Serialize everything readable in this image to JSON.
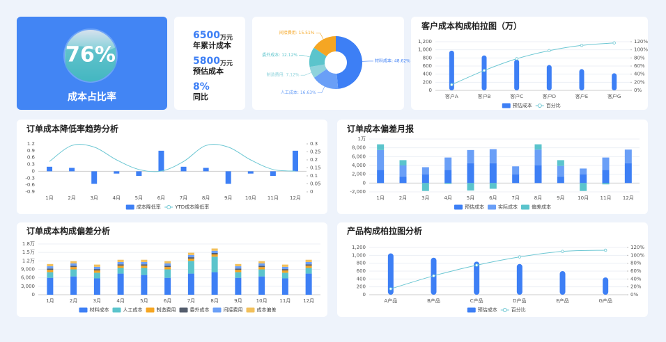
{
  "gauge": {
    "value": "76%",
    "label": "成本占比率"
  },
  "kpis": [
    {
      "value": "6500",
      "unit": "万元",
      "label": "年累计成本"
    },
    {
      "value": "5800",
      "unit": "万元",
      "label": "预估成本"
    },
    {
      "value": "8%",
      "label": "同比"
    }
  ],
  "chart_data": [
    {
      "type": "pie",
      "values": [
        48.62,
        16.63,
        7.12,
        12.12,
        15.51
      ],
      "value_labels": [
        "材料成本: 48.62%",
        "人工成本: 16.63%",
        "制造费用: 7.12%",
        "委外成本: 12.12%",
        "间接费用: 15.51%"
      ],
      "colors": [
        "#3d7ff5",
        "#6a9ff7",
        "#8fd3dc",
        "#5bc4cc",
        "#f5a623"
      ]
    },
    {
      "type": "combo",
      "title": "客户成本构成柏拉图（万）",
      "categories": [
        "客户A",
        "客户B",
        "客户C",
        "客户D",
        "客户E",
        "客户G"
      ],
      "series": [
        {
          "name": "预估成本",
          "type": "bar",
          "color": "#3d7ff5",
          "values": [
            980,
            862,
            760,
            625,
            524,
            422
          ]
        },
        {
          "name": "百分比",
          "type": "line",
          "axis": "y2",
          "markers": true,
          "color": "#6cc7d3",
          "values": [
            14,
            49,
            78,
            98,
            111,
            117
          ]
        }
      ],
      "ylim": [
        0,
        1200
      ],
      "yticks": [
        0,
        200,
        400,
        600,
        800,
        {
          "value": 1000,
          "label": "1,000"
        },
        {
          "value": 1200,
          "label": "1,200"
        }
      ],
      "y2lim": [
        0,
        120
      ],
      "y2ticks": [
        {
          "value": 0,
          "label": "0%"
        },
        {
          "value": 20,
          "label": "20%"
        },
        {
          "value": 40,
          "label": "40%"
        },
        {
          "value": 60,
          "label": "60%"
        },
        {
          "value": 80,
          "label": "80%"
        },
        {
          "value": 100,
          "label": "100%"
        },
        {
          "value": 120,
          "label": "120%"
        }
      ],
      "grid": true
    },
    {
      "type": "combo",
      "title": "订单成本降低率趋势分析",
      "categories": [
        "1月",
        "2月",
        "3月",
        "4月",
        "5月",
        "6月",
        "7月",
        "8月",
        "9月",
        "10月",
        "11月",
        "12月"
      ],
      "series": [
        {
          "name": "成本降低率",
          "type": "bar",
          "color": "#3d7ff5",
          "values": [
            0.2,
            0.15,
            -0.55,
            -0.1,
            -0.2,
            0.9,
            0.2,
            0.15,
            -0.55,
            -0.1,
            -0.2,
            0.9
          ]
        },
        {
          "name": "YTD成本降低率",
          "type": "line",
          "axis": "y2",
          "color": "#6cc7d3",
          "values": [
            0.19,
            0.29,
            0.28,
            0.2,
            0.14,
            0.13,
            0.19,
            0.29,
            0.28,
            0.2,
            0.14,
            0.13
          ]
        }
      ],
      "ylim": [
        -0.9,
        1.2
      ],
      "yticks": [
        -0.9,
        -0.6,
        -0.3,
        0,
        0.3,
        0.6,
        0.9,
        1.2
      ],
      "y2lim": [
        0,
        0.3
      ],
      "y2ticks": [
        0,
        0.05,
        0.1,
        0.15,
        0.2,
        0.25,
        0.3
      ],
      "grid": false
    },
    {
      "type": "stacked_bar",
      "title": "订单成本偏差月报",
      "categories": [
        "1月",
        "2月",
        "3月",
        "4月",
        "5月",
        "6月",
        "7月",
        "8月",
        "9月",
        "10月",
        "11月",
        "12月"
      ],
      "series": [
        {
          "name": "预估成本",
          "color": "#3d7ff5",
          "values": [
            3000,
            1500,
            2000,
            3000,
            4500,
            4500,
            2000,
            4000,
            1500,
            2000,
            3000,
            4500
          ]
        },
        {
          "name": "实际成本",
          "color": "#6a9ff7",
          "values": [
            4500,
            2500,
            1600,
            2800,
            3000,
            3200,
            1800,
            3600,
            2400,
            1300,
            2800,
            3100
          ]
        },
        {
          "name": "偏差成本",
          "color": "#5bc4cc",
          "values": [
            1300,
            1200,
            -1800,
            -200,
            -1700,
            -1300,
            0,
            1200,
            1300,
            -1800,
            -300,
            0
          ]
        }
      ],
      "ylim": [
        -2000,
        10000
      ],
      "yticks": [
        {
          "value": -2000,
          "label": "-2,000"
        },
        0,
        {
          "value": 2000,
          "label": "2,000"
        },
        {
          "value": 4000,
          "label": "4,000"
        },
        {
          "value": 6000,
          "label": "6,000"
        },
        {
          "value": 8000,
          "label": "8,000"
        },
        {
          "value": 10000,
          "label": "1万"
        }
      ],
      "grid": true
    },
    {
      "type": "stacked_bar",
      "title": "订单成本构成偏差分析",
      "categories": [
        "1月",
        "2月",
        "3月",
        "4月",
        "5月",
        "6月",
        "7月",
        "8月",
        "9月",
        "10月",
        "11月",
        "12月"
      ],
      "series": [
        {
          "name": "材料成本",
          "color": "#3d7ff5",
          "values": [
            6000,
            6500,
            5800,
            7500,
            7000,
            6000,
            7500,
            8000,
            6000,
            6500,
            5800,
            7500
          ]
        },
        {
          "name": "人工成本",
          "color": "#5bc4cc",
          "values": [
            2000,
            2500,
            2000,
            2000,
            2500,
            3000,
            4500,
            5500,
            2000,
            2500,
            2000,
            2000
          ]
        },
        {
          "name": "制造费用",
          "color": "#f5a623",
          "values": [
            800,
            800,
            800,
            800,
            800,
            800,
            800,
            800,
            800,
            800,
            800,
            800
          ]
        },
        {
          "name": "委外成本",
          "color": "#555e6e",
          "values": [
            500,
            500,
            500,
            500,
            500,
            500,
            500,
            500,
            500,
            500,
            500,
            500
          ]
        },
        {
          "name": "间接费用",
          "color": "#6a9ff7",
          "values": [
            800,
            800,
            800,
            800,
            800,
            800,
            800,
            800,
            800,
            800,
            800,
            800
          ]
        },
        {
          "name": "成本偏差",
          "color": "#f2c05c",
          "values": [
            800,
            800,
            800,
            800,
            800,
            800,
            800,
            800,
            800,
            800,
            800,
            800
          ]
        }
      ],
      "ylim": [
        0,
        18000
      ],
      "yticks": [
        0,
        {
          "value": 3000,
          "label": "3,000"
        },
        {
          "value": 6000,
          "label": "6,000"
        },
        {
          "value": 9000,
          "label": "9,000"
        },
        {
          "value": 12000,
          "label": "1.2万"
        },
        {
          "value": 15000,
          "label": "1.5万"
        },
        {
          "value": 18000,
          "label": "1.8万"
        }
      ],
      "grid": true
    },
    {
      "type": "combo",
      "title": "产品构成柏拉图分析",
      "categories": [
        "A产品",
        "B产品",
        "C产品",
        "D产品",
        "E产品",
        "G产品"
      ],
      "series": [
        {
          "name": "预估成本",
          "type": "bar",
          "color": "#3d7ff5",
          "values": [
            1050,
            940,
            840,
            780,
            600,
            440
          ]
        },
        {
          "name": "百分比",
          "type": "line",
          "axis": "y2",
          "markers": true,
          "color": "#6cc7d3",
          "values": [
            15,
            48,
            75,
            96,
            110,
            113
          ]
        }
      ],
      "ylim": [
        0,
        1200
      ],
      "yticks": [
        0,
        200,
        400,
        600,
        800,
        {
          "value": 1000,
          "label": "1,000"
        },
        {
          "value": 1200,
          "label": "1,200"
        }
      ],
      "y2lim": [
        0,
        120
      ],
      "y2ticks": [
        {
          "value": 0,
          "label": "0%"
        },
        {
          "value": 20,
          "label": "20%"
        },
        {
          "value": 40,
          "label": "40%"
        },
        {
          "value": 60,
          "label": "60%"
        },
        {
          "value": 80,
          "label": "80%"
        },
        {
          "value": 100,
          "label": "100%"
        },
        {
          "value": 120,
          "label": "120%"
        }
      ],
      "grid": true
    }
  ]
}
